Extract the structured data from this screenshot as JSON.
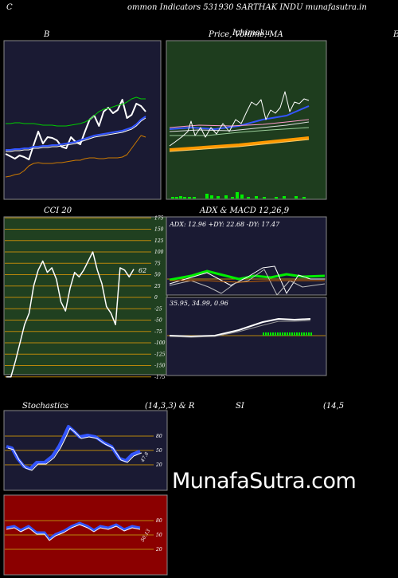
{
  "header": {
    "left_letter": "C",
    "title": "ommon  Indicators 531930  SARTHAK INDU munafasutra.in"
  },
  "panels": {
    "bollinger": {
      "title": "B"
    },
    "price": {
      "title": "Price,  Volume,  MA",
      "overlay": "Ichimoku"
    },
    "far_right": {
      "title": "E"
    },
    "cci": {
      "title": "CCI 20",
      "value_label": "62"
    },
    "adx_macd": {
      "title": "ADX  & MACD 12,26,9",
      "adx_readout": "ADX: 12.96   +DY: 22.68   -DY: 17.47",
      "macd_readout": "35.95,  34.99,  0.96"
    },
    "stochastics": {
      "title_left": "Stochastics",
      "title_mid": "(14,3,3) & R",
      "value_label": "47.8"
    },
    "rsi": {
      "title_left": "SI",
      "title_right": "(14,5",
      "value_label": "50.13"
    }
  },
  "watermark": "MunafaSutra.com",
  "colors": {
    "bollinger_bg": "#1a1a33",
    "price_bg": "#1e3d1e",
    "cci_bg": "#204020",
    "adx_bg": "#1a1a33",
    "stoch_bg": "#1a1a33",
    "rsi_bg": "#8b0000",
    "grid_orange": "#b8860b",
    "band_green": "#00cc00",
    "ma_blue": "#3355ff",
    "orange": "#ff9900"
  },
  "chart_data": [
    {
      "type": "line",
      "name": "bollinger-bands",
      "series": [
        {
          "name": "price",
          "values": [
            193,
            196,
            199,
            195,
            197,
            200,
            182,
            165,
            180,
            172,
            173,
            176,
            184,
            186,
            172,
            178,
            181,
            165,
            150,
            145,
            158,
            140,
            135,
            142,
            138,
            125,
            148,
            144,
            130,
            133,
            140
          ]
        },
        {
          "name": "upper",
          "values": [
            155,
            155,
            154,
            154,
            155,
            155,
            155,
            156,
            157,
            157,
            157,
            158,
            158,
            158,
            157,
            156,
            155,
            153,
            150,
            145,
            140,
            137,
            136,
            134,
            132,
            131,
            128,
            124,
            122,
            124,
            124
          ]
        },
        {
          "name": "middle",
          "values": [
            188,
            188,
            187,
            187,
            186,
            186,
            184,
            184,
            183,
            183,
            182,
            182,
            181,
            180,
            179,
            178,
            176,
            174,
            172,
            170,
            169,
            168,
            167,
            166,
            165,
            164,
            162,
            160,
            156,
            150,
            146
          ]
        },
        {
          "name": "lower",
          "values": [
            222,
            221,
            219,
            218,
            214,
            208,
            205,
            204,
            205,
            205,
            205,
            204,
            204,
            203,
            202,
            201,
            201,
            199,
            198,
            198,
            199,
            199,
            198,
            198,
            198,
            197,
            194,
            186,
            178,
            170,
            172
          ]
        }
      ]
    },
    {
      "type": "bar",
      "name": "cci-20",
      "yticks": [
        175,
        150,
        125,
        100,
        75,
        50,
        25,
        0,
        -25,
        -50,
        -75,
        -100,
        -125,
        -150,
        -175
      ],
      "values": [
        -175,
        -175,
        -140,
        -100,
        -60,
        -35,
        25,
        60,
        80,
        55,
        65,
        40,
        -10,
        -30,
        20,
        55,
        45,
        60,
        80,
        100,
        60,
        30,
        -20,
        -35,
        -60,
        65,
        60,
        45,
        62
      ]
    },
    {
      "type": "line",
      "name": "adx",
      "readout": {
        "ADX": 12.96,
        "+DY": 22.68,
        "-DY": 17.47
      }
    },
    {
      "type": "line",
      "name": "macd",
      "readout": [
        35.95,
        34.99,
        0.96
      ]
    },
    {
      "type": "line",
      "name": "stochastics",
      "yticks": [
        80,
        50,
        20
      ],
      "value_last": 47.8
    },
    {
      "type": "line",
      "name": "rsi",
      "yticks": [
        80,
        50,
        20
      ],
      "value_last": 50.13
    }
  ]
}
